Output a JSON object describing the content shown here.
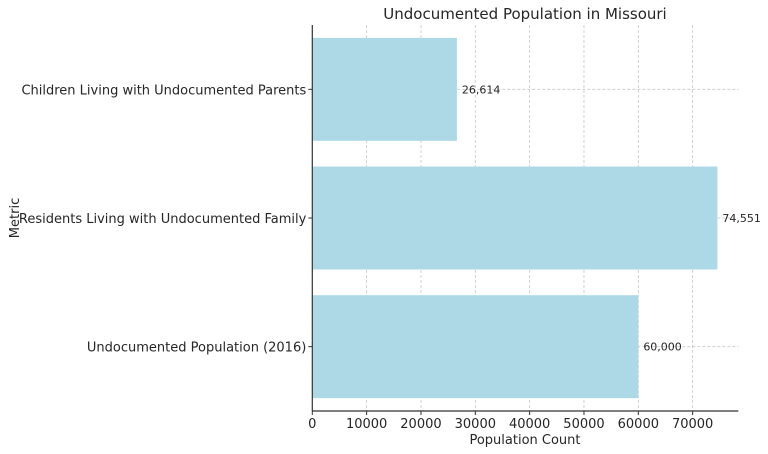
{
  "chart_data": {
    "type": "bar",
    "orientation": "horizontal",
    "title": "Undocumented Population in Missouri",
    "xlabel": "Population Count",
    "ylabel": "Metric",
    "categories": [
      "Children Living with Undocumented Parents",
      "Residents Living with Undocumented Family",
      "Undocumented Population (2016)"
    ],
    "values": [
      26614,
      74551,
      60000
    ],
    "data_labels": [
      "26,614",
      "74,551",
      "60,000"
    ],
    "xlim": [
      0,
      78400
    ],
    "xticks": [
      0,
      10000,
      20000,
      30000,
      40000,
      50000,
      60000,
      70000
    ],
    "xtick_labels": [
      "0",
      "10000",
      "20000",
      "30000",
      "40000",
      "50000",
      "60000",
      "70000"
    ],
    "grid": true,
    "bar_color": "#add8e6"
  }
}
